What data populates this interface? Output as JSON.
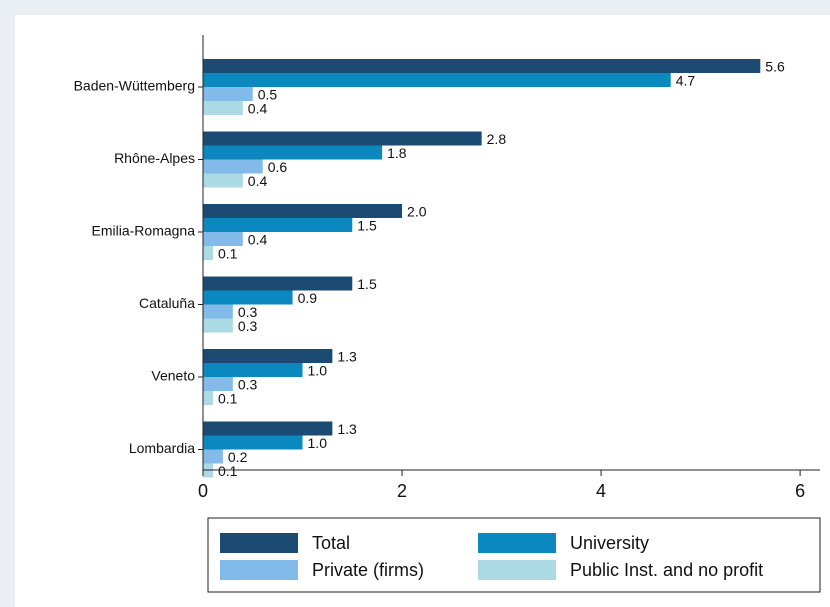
{
  "chart_data": {
    "type": "hbar",
    "categories": [
      "Baden-Wüttemberg",
      "Rhône-Alpes",
      "Emilia-Romagna",
      "Cataluña",
      "Veneto",
      "Lombardia"
    ],
    "series": [
      {
        "name": "Total",
        "color": "#1b4a72",
        "values": [
          5.6,
          2.8,
          2.0,
          1.5,
          1.3,
          1.3
        ],
        "value_labels": [
          "5.6",
          "2.8",
          "2.0",
          "1.5",
          "1.3",
          "1.3"
        ]
      },
      {
        "name": "University",
        "color": "#0b88bf",
        "values": [
          4.7,
          1.8,
          1.5,
          0.9,
          1.0,
          1.0
        ],
        "value_labels": [
          "4.7",
          "1.8",
          "1.5",
          "0.9",
          "1.0",
          "1.0"
        ]
      },
      {
        "name": "Private (firms)",
        "color": "#82bbe9",
        "values": [
          0.5,
          0.6,
          0.4,
          0.3,
          0.3,
          0.2
        ],
        "value_labels": [
          "0.5",
          "0.6",
          "0.4",
          "0.3",
          "0.3",
          "0.2"
        ]
      },
      {
        "name": "Public Inst. and no profit",
        "color": "#abd9e4",
        "values": [
          0.4,
          0.4,
          0.1,
          0.3,
          0.1,
          0.1
        ],
        "value_labels": [
          "0.4",
          "0.4",
          "0.1",
          "0.3",
          "0.1",
          "0.1"
        ]
      }
    ],
    "xlim": [
      0,
      6.2
    ],
    "xticks": [
      0,
      2,
      4,
      6
    ]
  }
}
